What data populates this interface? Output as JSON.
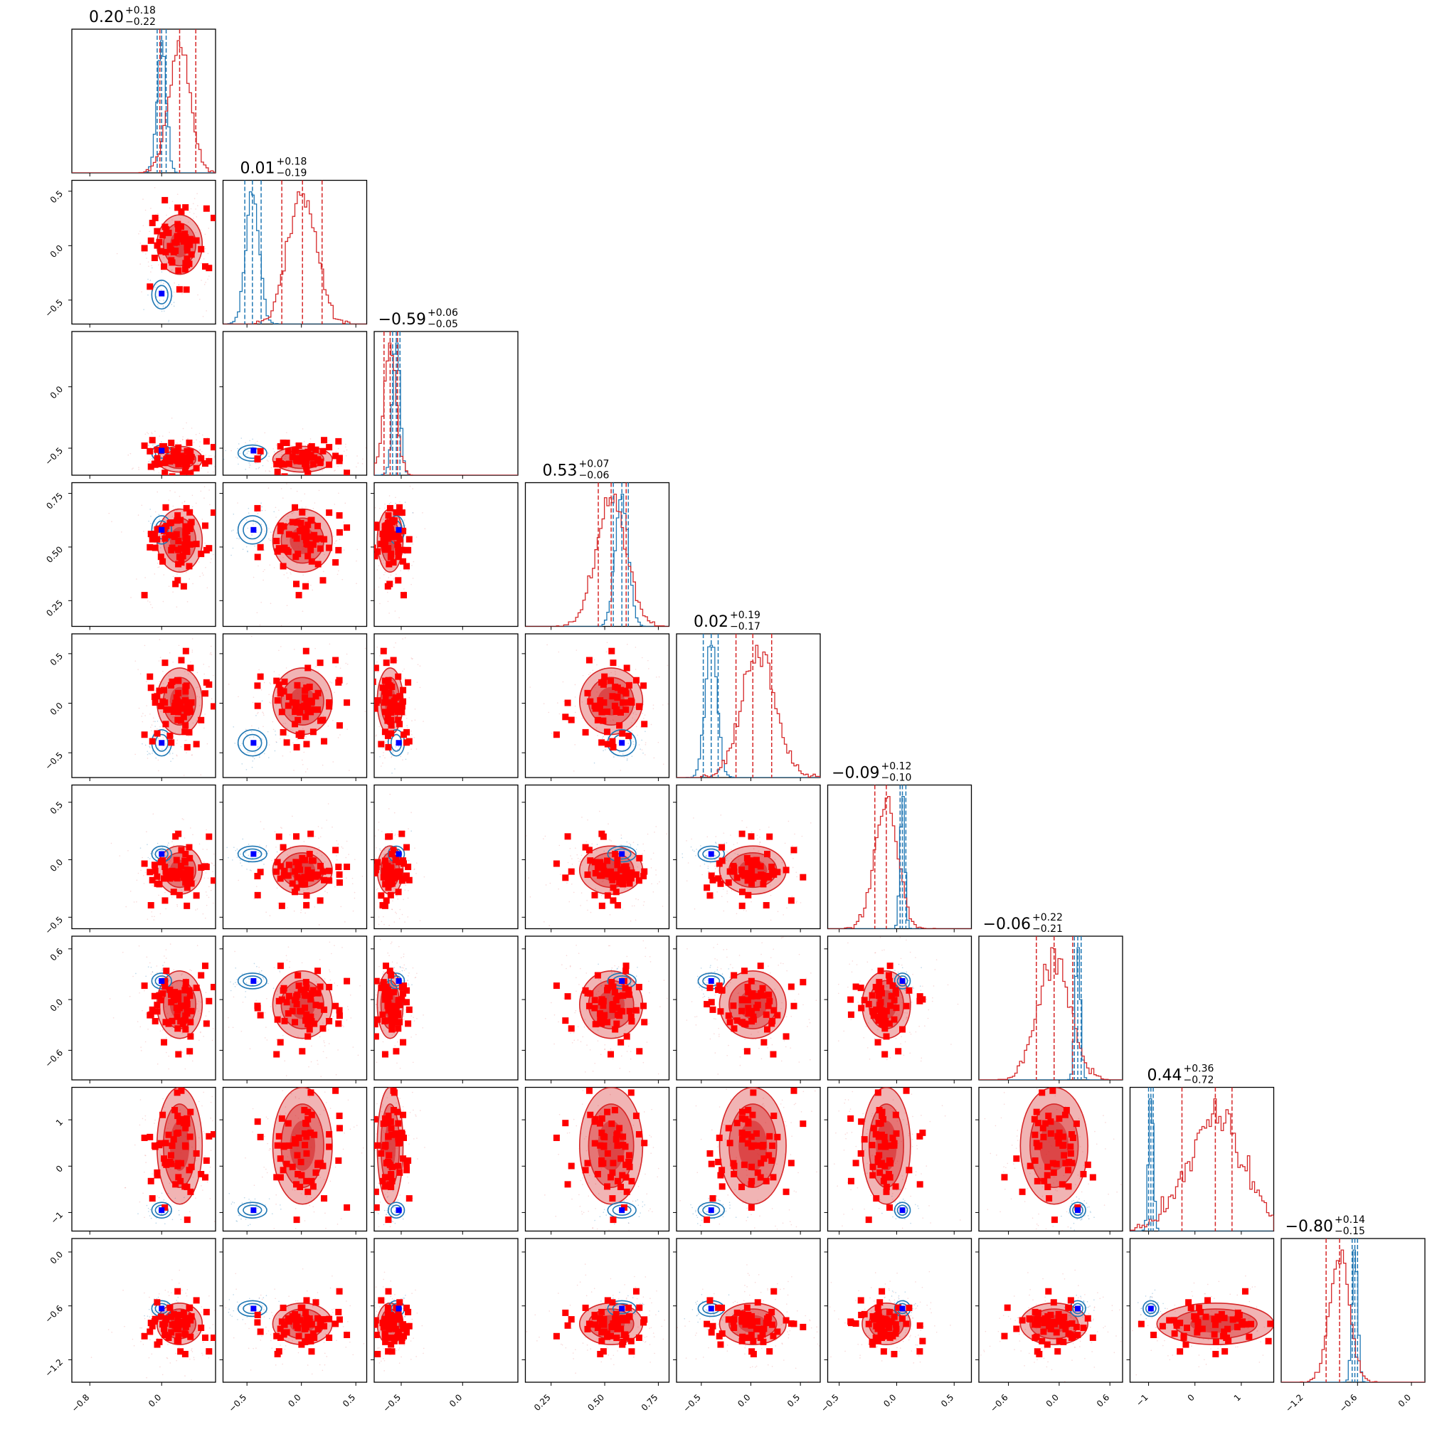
{
  "chart_data": {
    "type": "corner",
    "n_params": 9,
    "colors": {
      "posterior_a": "#d62728",
      "posterior_b": "#1f77b4",
      "scatter_markers": "#ff0000",
      "truth_marker": "#0000ff"
    },
    "titles": [
      {
        "median": "0.20",
        "plus": "+0.18",
        "minus": "−0.22"
      },
      {
        "median": "0.01",
        "plus": "+0.18",
        "minus": "−0.19"
      },
      {
        "median": "−0.59",
        "plus": "+0.06",
        "minus": "−0.05"
      },
      {
        "median": "0.53",
        "plus": "+0.07",
        "minus": "−0.06"
      },
      {
        "median": "0.02",
        "plus": "+0.19",
        "minus": "−0.17"
      },
      {
        "median": "−0.09",
        "plus": "+0.12",
        "minus": "−0.10"
      },
      {
        "median": "−0.06",
        "plus": "+0.22",
        "minus": "−0.21"
      },
      {
        "median": "0.44",
        "plus": "+0.36",
        "minus": "−0.72"
      },
      {
        "median": "−0.80",
        "plus": "+0.14",
        "minus": "−0.15"
      }
    ],
    "ranges": [
      [
        -1.0,
        0.6
      ],
      [
        -0.72,
        0.6
      ],
      [
        -0.72,
        0.45
      ],
      [
        0.13,
        0.8
      ],
      [
        -0.75,
        0.7
      ],
      [
        -0.6,
        0.65
      ],
      [
        -0.95,
        0.75
      ],
      [
        -1.4,
        1.7
      ],
      [
        -1.45,
        0.15
      ]
    ],
    "ticks": [
      {
        "values": [
          -0.8,
          0.0
        ],
        "labels": [
          "−0.8",
          "0.0"
        ]
      },
      {
        "values": [
          -0.5,
          0.0,
          0.5
        ],
        "labels": [
          "−0.5",
          "0.0",
          "0.5"
        ]
      },
      {
        "values": [
          -0.5,
          0.0
        ],
        "labels": [
          "−0.5",
          "0.0"
        ]
      },
      {
        "values": [
          0.25,
          0.5,
          0.75
        ],
        "labels": [
          "0.25",
          "0.50",
          "0.75"
        ]
      },
      {
        "values": [
          -0.5,
          0.0,
          0.5
        ],
        "labels": [
          "−0.5",
          "0.0",
          "0.5"
        ]
      },
      {
        "values": [
          -0.5,
          0.0,
          0.5
        ],
        "labels": [
          "−0.5",
          "0.0",
          "0.5"
        ]
      },
      {
        "values": [
          -0.6,
          0.0,
          0.6
        ],
        "labels": [
          "−0.6",
          "0.0",
          "0.6"
        ]
      },
      {
        "values": [
          -1,
          0,
          1
        ],
        "labels": [
          "−1",
          "0",
          "1"
        ]
      },
      {
        "values": [
          -1.2,
          -0.6,
          0.0
        ],
        "labels": [
          "−1.2",
          "−0.6",
          "0.0"
        ]
      }
    ],
    "posterior_a": {
      "mean": [
        0.2,
        0.01,
        -0.59,
        0.53,
        0.02,
        -0.09,
        -0.06,
        0.44,
        -0.8
      ],
      "sd": [
        0.12,
        0.13,
        0.05,
        0.07,
        0.16,
        0.1,
        0.19,
        0.6,
        0.11
      ],
      "q16": [
        -0.02,
        -0.18,
        -0.64,
        0.47,
        -0.15,
        -0.19,
        -0.27,
        -0.28,
        -0.95
      ],
      "q84": [
        0.38,
        0.19,
        -0.53,
        0.6,
        0.21,
        0.03,
        0.16,
        0.8,
        -0.66
      ]
    },
    "posterior_b": {
      "mean": [
        0.0,
        -0.45,
        -0.54,
        0.58,
        -0.4,
        0.05,
        0.22,
        -0.95,
        -0.63
      ],
      "sd": [
        0.05,
        0.06,
        0.03,
        0.03,
        0.06,
        0.02,
        0.03,
        0.05,
        0.03
      ],
      "q16": [
        -0.05,
        -0.52,
        -0.57,
        0.54,
        -0.48,
        0.03,
        0.18,
        -1.0,
        -0.66
      ],
      "q84": [
        0.05,
        -0.37,
        -0.51,
        0.61,
        -0.33,
        0.08,
        0.26,
        -0.9,
        -0.6
      ]
    },
    "truth": [
      0.0,
      -0.44,
      -0.52,
      0.58,
      -0.4,
      0.05,
      0.22,
      -0.95,
      -0.63
    ]
  }
}
